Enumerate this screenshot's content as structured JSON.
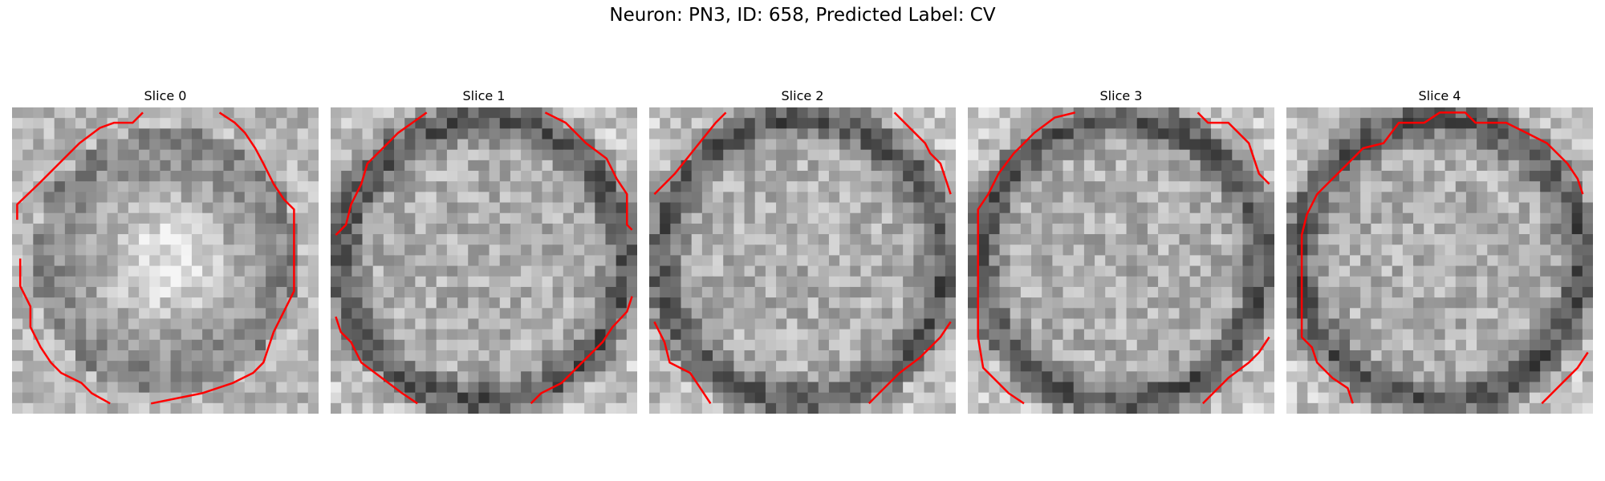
{
  "figure": {
    "title": "Neuron: PN3, ID: 658, Predicted Label: CV",
    "contour_color": "#ff0000",
    "colormap": "gray"
  },
  "slices": [
    {
      "label": "Slice 0"
    },
    {
      "label": "Slice 1"
    },
    {
      "label": "Slice 2"
    },
    {
      "label": "Slice 3"
    },
    {
      "label": "Slice 4"
    }
  ]
}
